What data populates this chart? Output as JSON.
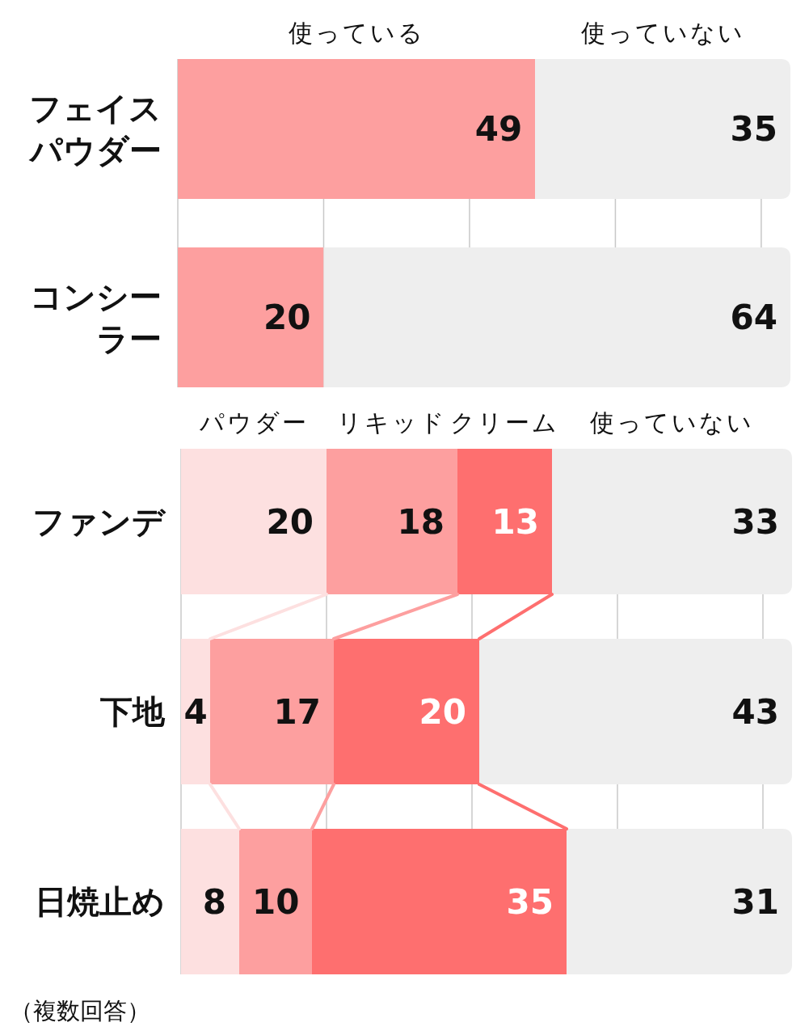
{
  "chart_data": [
    {
      "type": "bar",
      "orientation": "horizontal",
      "stacked": true,
      "categories": [
        "フェイスパウダー",
        "コンシーラー"
      ],
      "series": [
        {
          "name": "使っている",
          "color": "#fd9f9f",
          "values": [
            49,
            20
          ]
        },
        {
          "name": "使っていない",
          "color": "#eeeeee",
          "values": [
            35,
            64
          ]
        }
      ],
      "xlim": [
        0,
        84
      ],
      "xticks": [
        {
          "value": 0,
          "label": null
        },
        {
          "value": 20,
          "label": null
        },
        {
          "value": 40,
          "label": null
        },
        {
          "value": 60,
          "label": null
        },
        {
          "value": 80,
          "label": null
        }
      ],
      "grid": "x",
      "tick_labels": "y",
      "legend": "top",
      "data_labels": true
    },
    {
      "type": "bar",
      "orientation": "horizontal",
      "stacked": true,
      "categories": [
        "ファンデ",
        "下地",
        "日焼止め"
      ],
      "series": [
        {
          "name": "パウダー",
          "color": "#fde0e0",
          "values": [
            20,
            4,
            8
          ]
        },
        {
          "name": "リキッド",
          "color": "#fd9f9f",
          "values": [
            18,
            17,
            10
          ]
        },
        {
          "name": "クリーム",
          "color": "#fe6f6f",
          "values": [
            13,
            20,
            35
          ]
        },
        {
          "name": "使っていない",
          "color": "#eeeeee",
          "values": [
            33,
            43,
            31
          ]
        }
      ],
      "xlim": [
        0,
        84
      ],
      "xticks": [
        {
          "value": 0,
          "label": null
        },
        {
          "value": 20,
          "label": null
        },
        {
          "value": 40,
          "label": null
        },
        {
          "value": 60,
          "label": null
        },
        {
          "value": 80,
          "label": null
        }
      ],
      "grid": "x",
      "tick_labels": "y",
      "legend": "top",
      "data_labels": true,
      "annotations": [
        "（複数回答）"
      ]
    }
  ]
}
